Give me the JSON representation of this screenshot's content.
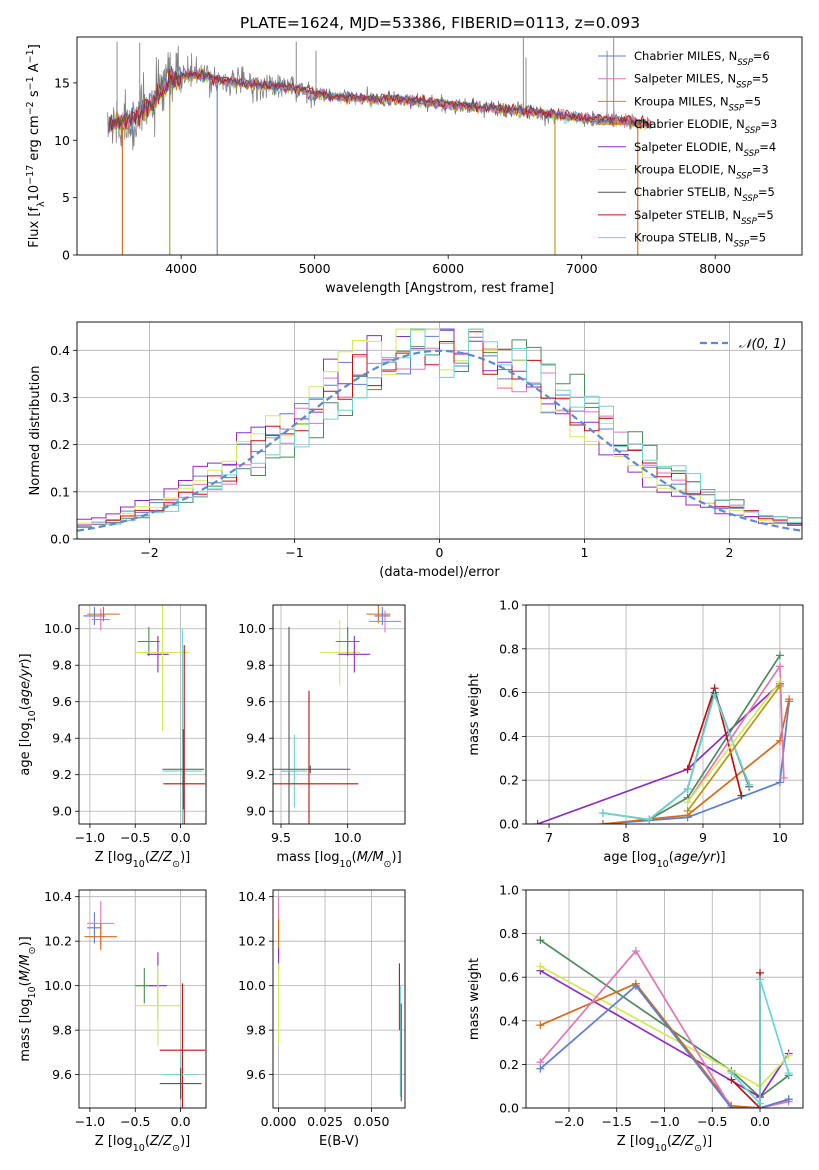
{
  "colors": {
    "Chabrier MILES": "#5b7fd4",
    "Salpeter MILES": "#e075b8",
    "Kroupa MILES": "#b8960e",
    "Chabrier ELODIE": "#d46a1a",
    "Salpeter ELODIE": "#8d2cc2",
    "Kroupa ELODIE": "#d5e85a",
    "Chabrier STELIB": "#555555",
    "Salpeter STELIB": "#c01010",
    "Kroupa STELIB": "#6cd4d4",
    "spectrum": "#808080",
    "normal": "#5b8bd4",
    "greenish": "#4e8a5a"
  },
  "chart_data": [
    {
      "id": "spectrum",
      "type": "line",
      "title": "PLATE=1624, MJD=53386, FIBERID=0113, z=0.093",
      "xlabel": "wavelength [Angstrom, rest frame]",
      "ylabel": "Flux [fλ10⁻¹⁷ erg cm⁻² s⁻¹ A⁻¹]",
      "xlim": [
        3220,
        8650
      ],
      "ylim": [
        0,
        19
      ],
      "xticks": [
        4000,
        5000,
        6000,
        7000,
        8000
      ],
      "yticks": [
        0,
        5,
        10,
        15
      ],
      "grid": false,
      "legend_position": "top-right",
      "legend": [
        {
          "name": "Chabrier MILES, N",
          "sub": "SSP",
          "tail": "=6"
        },
        {
          "name": "Salpeter MILES, N",
          "sub": "SSP",
          "tail": "=5"
        },
        {
          "name": "Kroupa MILES, N",
          "sub": "SSP",
          "tail": "=5"
        },
        {
          "name": "Chabrier ELODIE, N",
          "sub": "SSP",
          "tail": "=3"
        },
        {
          "name": "Salpeter ELODIE, N",
          "sub": "SSP",
          "tail": "=4"
        },
        {
          "name": "Kroupa ELODIE, N",
          "sub": "SSP",
          "tail": "=3"
        },
        {
          "name": "Chabrier STELIB, N",
          "sub": "SSP",
          "tail": "=5"
        },
        {
          "name": "Salpeter STELIB, N",
          "sub": "SSP",
          "tail": "=5"
        },
        {
          "name": "Kroupa STELIB, N",
          "sub": "SSP",
          "tail": "=5"
        }
      ],
      "continuum": [
        [
          3450,
          11.2
        ],
        [
          3560,
          11.6
        ],
        [
          3700,
          12.2
        ],
        [
          3850,
          14.2
        ],
        [
          3950,
          15.4
        ],
        [
          4100,
          15.8
        ],
        [
          4300,
          15.2
        ],
        [
          4500,
          14.9
        ],
        [
          4700,
          14.7
        ],
        [
          4900,
          14.4
        ],
        [
          5100,
          13.8
        ],
        [
          5400,
          13.6
        ],
        [
          5700,
          13.5
        ],
        [
          6000,
          13.1
        ],
        [
          6300,
          12.8
        ],
        [
          6600,
          12.5
        ],
        [
          6800,
          12.2
        ],
        [
          7000,
          11.9
        ],
        [
          7300,
          11.7
        ],
        [
          7500,
          11.4
        ]
      ],
      "spectrum_spikes": [
        [
          3520,
          18.6
        ],
        [
          3690,
          18.5
        ],
        [
          3970,
          17.6
        ],
        [
          4862,
          18.6
        ],
        [
          5010,
          17.8
        ],
        [
          6563,
          18.9
        ],
        [
          6583,
          17.2
        ],
        [
          7190,
          17.8
        ],
        [
          7240,
          18.9
        ]
      ],
      "model_dropouts": [
        {
          "series": "Chabrier ELODIE",
          "x": 3560,
          "to": 0
        },
        {
          "series": "Kroupa MILES",
          "x": 3915,
          "to": 0
        },
        {
          "series": "Chabrier MILES",
          "x": 4270,
          "to": 0
        },
        {
          "series": "Kroupa MILES",
          "x": 6800,
          "to": 0
        },
        {
          "series": "Chabrier ELODIE",
          "x": 7420,
          "to": 0
        }
      ]
    },
    {
      "id": "residuals",
      "type": "line",
      "xlabel": "(data-model)/error",
      "ylabel": "Normed distribution",
      "xlim": [
        -2.5,
        2.5
      ],
      "ylim": [
        0,
        0.46
      ],
      "xticks": [
        -2,
        -1,
        0,
        1,
        2
      ],
      "yticks": [
        0.0,
        0.1,
        0.2,
        0.3,
        0.4
      ],
      "grid": true,
      "bins": 50,
      "legend": {
        "label": "𝒩(0, 1)",
        "position": "top-right"
      },
      "series": [
        {
          "name": "Chabrier MILES",
          "key": "Chabrier MILES"
        },
        {
          "name": "Salpeter MILES",
          "key": "Salpeter MILES"
        },
        {
          "name": "Chabrier ELODIE",
          "key": "greenish"
        },
        {
          "name": "Salpeter ELODIE",
          "key": "Salpeter ELODIE"
        },
        {
          "name": "Kroupa ELODIE",
          "key": "Kroupa ELODIE"
        },
        {
          "name": "Salpeter STELIB",
          "key": "Salpeter STELIB"
        },
        {
          "name": "Kroupa STELIB",
          "key": "Kroupa STELIB"
        }
      ]
    },
    {
      "id": "age-vs-Z",
      "type": "scatter",
      "xlabel": "Z [log₁₀(Z/Z⊙)]",
      "ylabel": "age  [log₁₀(age/yr)]",
      "xlim": [
        -1.12,
        0.28
      ],
      "ylim": [
        8.93,
        10.13
      ],
      "xticks": [
        -1.0,
        -0.5,
        0.0
      ],
      "yticks": [
        9.0,
        9.2,
        9.4,
        9.6,
        9.8,
        10.0
      ],
      "grid": true,
      "points": [
        {
          "key": "Chabrier MILES",
          "x": -0.95,
          "y": 10.07,
          "xerr": 0.12,
          "yerr": 0.05
        },
        {
          "key": "Salpeter MILES",
          "x": -0.88,
          "y": 10.05,
          "xerr": 0.1,
          "yerr": 0.06
        },
        {
          "key": "Chabrier ELODIE",
          "x": -0.85,
          "y": 10.08,
          "xerr": 0.18,
          "yerr": 0.04
        },
        {
          "key": "greenish",
          "x": -0.35,
          "y": 9.93,
          "xerr": 0.12,
          "yerr": 0.08
        },
        {
          "key": "Salpeter ELODIE",
          "x": -0.25,
          "y": 9.86,
          "xerr": 0.12,
          "yerr": 0.1
        },
        {
          "key": "Kroupa ELODIE",
          "x": -0.2,
          "y": 9.87,
          "xerr": 0.3,
          "yerr": 0.43
        },
        {
          "key": "Kroupa STELIB",
          "x": 0.02,
          "y": 9.22,
          "xerr": 0.22,
          "yerr": 0.78
        },
        {
          "key": "Chabrier STELIB",
          "x": 0.03,
          "y": 9.23,
          "xerr": 0.23,
          "yerr": 0.22
        },
        {
          "key": "Salpeter STELIB",
          "x": 0.04,
          "y": 9.15,
          "xerr": 0.23,
          "yerr": 0.76
        }
      ]
    },
    {
      "id": "age-vs-mass",
      "type": "scatter",
      "xlabel": "mass [log₁₀(M/M⊙)]",
      "ylabel": "",
      "xlim": [
        9.44,
        10.43
      ],
      "ylim": [
        8.93,
        10.13
      ],
      "xticks": [
        9.5,
        10.0
      ],
      "yticks": [
        9.0,
        9.2,
        9.4,
        9.6,
        9.8,
        10.0
      ],
      "grid": true,
      "points": [
        {
          "key": "Chabrier STELIB",
          "x": 9.56,
          "y": 9.22,
          "xerr": 0.05,
          "yerr": 0.79
        },
        {
          "key": "Kroupa STELIB",
          "x": 9.6,
          "y": 9.22,
          "xerr": 0.1,
          "yerr": 0.2
        },
        {
          "key": "Chabrier STELIB",
          "x": 9.72,
          "y": 9.23,
          "xerr": 0.3,
          "yerr": 0.02
        },
        {
          "key": "Salpeter STELIB",
          "x": 9.71,
          "y": 9.15,
          "xerr": 0.37,
          "yerr": 0.51
        },
        {
          "key": "Kroupa ELODIE",
          "x": 9.94,
          "y": 9.87,
          "xerr": 0.15,
          "yerr": 0.18
        },
        {
          "key": "greenish",
          "x": 10.0,
          "y": 9.93,
          "xerr": 0.09,
          "yerr": 0.08
        },
        {
          "key": "Salpeter ELODIE",
          "x": 10.05,
          "y": 9.86,
          "xerr": 0.12,
          "yerr": 0.1
        },
        {
          "key": "Chabrier ELODIE",
          "x": 10.23,
          "y": 10.08,
          "xerr": 0.09,
          "yerr": 0.05
        },
        {
          "key": "Salpeter MILES",
          "x": 10.28,
          "y": 10.04,
          "xerr": 0.12,
          "yerr": 0.06
        },
        {
          "key": "Chabrier MILES",
          "x": 10.26,
          "y": 10.07,
          "xerr": 0.06,
          "yerr": 0.05
        }
      ]
    },
    {
      "id": "weight-vs-age",
      "type": "line",
      "xlabel": "age  [log₁₀(age/yr)]",
      "ylabel": "mass weight",
      "xlim": [
        6.7,
        10.3
      ],
      "ylim": [
        0,
        1.0
      ],
      "xticks": [
        7,
        8,
        9,
        10
      ],
      "yticks": [
        0.0,
        0.2,
        0.4,
        0.6,
        0.8,
        1.0
      ],
      "grid": true,
      "series": [
        {
          "name": "Salpeter ELODIE",
          "key": "Salpeter ELODIE",
          "x": [
            6.85,
            8.8,
            10.0
          ],
          "y": [
            0.0,
            0.25,
            0.64
          ]
        },
        {
          "name": "Chabrier MILES",
          "key": "Chabrier MILES",
          "x": [
            7.7,
            8.8,
            10.0,
            10.12
          ],
          "y": [
            0.0,
            0.03,
            0.19,
            0.56
          ]
        },
        {
          "name": "Chabrier ELODIE",
          "key": "Chabrier ELODIE",
          "x": [
            7.7,
            8.8,
            10.0,
            10.12
          ],
          "y": [
            0.0,
            0.04,
            0.38,
            0.57
          ]
        },
        {
          "name": "Chabrier ELODIE",
          "key": "greenish",
          "x": [
            7.7,
            8.3,
            8.8,
            10.0
          ],
          "y": [
            0.05,
            0.02,
            0.12,
            0.77
          ]
        },
        {
          "name": "Salpeter STELIB",
          "key": "Salpeter STELIB",
          "x": [
            8.8,
            9.15,
            9.5
          ],
          "y": [
            0.25,
            0.62,
            0.13
          ]
        },
        {
          "name": "Chabrier STELIB",
          "key": "Chabrier STELIB",
          "x": [
            8.3,
            8.8,
            9.15,
            9.6
          ],
          "y": [
            0.02,
            0.16,
            0.6,
            0.17
          ]
        },
        {
          "name": "Kroupa STELIB",
          "key": "Kroupa STELIB",
          "x": [
            7.7,
            8.3,
            8.8,
            9.15,
            9.6
          ],
          "y": [
            0.05,
            0.02,
            0.16,
            0.59,
            0.18
          ]
        },
        {
          "name": "Salpeter MILES",
          "key": "Salpeter MILES",
          "x": [
            8.8,
            10.0,
            10.05
          ],
          "y": [
            0.1,
            0.72,
            0.21
          ]
        },
        {
          "name": "Kroupa ELODIE",
          "key": "Kroupa ELODIE",
          "x": [
            8.8,
            10.0
          ],
          "y": [
            0.1,
            0.65
          ]
        },
        {
          "name": "Kroupa MILES",
          "key": "Kroupa MILES",
          "x": [
            8.8,
            10.0
          ],
          "y": [
            0.06,
            0.63
          ]
        }
      ]
    },
    {
      "id": "mass-vs-Z",
      "type": "scatter",
      "xlabel": "Z [log₁₀(Z/Z⊙)]",
      "ylabel": "mass [log₁₀(M/M⊙)]",
      "xlim": [
        -1.12,
        0.28
      ],
      "ylim": [
        9.45,
        10.43
      ],
      "xticks": [
        -1.0,
        -0.5,
        0.0
      ],
      "yticks": [
        9.6,
        9.8,
        10.0,
        10.2,
        10.4
      ],
      "grid": true,
      "points": [
        {
          "key": "Chabrier MILES",
          "x": -0.95,
          "y": 10.26,
          "xerr": 0.08,
          "yerr": 0.07
        },
        {
          "key": "Salpeter MILES",
          "x": -0.88,
          "y": 10.28,
          "xerr": 0.15,
          "yerr": 0.1
        },
        {
          "key": "Chabrier ELODIE",
          "x": -0.88,
          "y": 10.22,
          "xerr": 0.18,
          "yerr": 0.06
        },
        {
          "key": "greenish",
          "x": -0.4,
          "y": 10.0,
          "xerr": 0.1,
          "yerr": 0.08
        },
        {
          "key": "Salpeter ELODIE",
          "x": -0.25,
          "y": 10.0,
          "xerr": 0.1,
          "yerr": 0.15
        },
        {
          "key": "Kroupa ELODIE",
          "x": -0.25,
          "y": 9.91,
          "xerr": 0.25,
          "yerr": 0.18
        },
        {
          "key": "Salpeter STELIB",
          "x": 0.02,
          "y": 9.71,
          "xerr": 0.25,
          "yerr": 0.3
        },
        {
          "key": "Kroupa STELIB",
          "x": 0.0,
          "y": 9.6,
          "xerr": 0.2,
          "yerr": 0.1
        },
        {
          "key": "Chabrier STELIB",
          "x": 0.0,
          "y": 9.56,
          "xerr": 0.23,
          "yerr": 0.07
        }
      ]
    },
    {
      "id": "mass-vs-EBV",
      "type": "scatter",
      "xlabel": "E(B-V)",
      "ylabel": "",
      "xlim": [
        -0.003,
        0.068
      ],
      "ylim": [
        9.45,
        10.43
      ],
      "xticks": [
        0.0,
        0.025,
        0.05
      ],
      "yticks": [
        9.6,
        9.8,
        10.0,
        10.2,
        10.4
      ],
      "grid": true,
      "points": [
        {
          "key": "Salpeter MILES",
          "x": 0.0,
          "y": 10.3,
          "xerr": 0,
          "yerr": 0.1
        },
        {
          "key": "Chabrier ELODIE",
          "x": 0.0,
          "y": 10.22,
          "xerr": 0,
          "yerr": 0.08
        },
        {
          "key": "Salpeter ELODIE",
          "x": 0.0,
          "y": 10.12,
          "xerr": 0,
          "yerr": 0.05
        },
        {
          "key": "Kroupa ELODIE",
          "x": 0.0,
          "y": 9.92,
          "xerr": 0,
          "yerr": 0.18
        },
        {
          "key": "Salpeter STELIB",
          "x": 0.065,
          "y": 9.95,
          "xerr": 0,
          "yerr": 0.15
        },
        {
          "key": "Kroupa STELIB",
          "x": 0.0655,
          "y": 9.75,
          "xerr": 0,
          "yerr": 0.25
        },
        {
          "key": "Chabrier STELIB",
          "x": 0.066,
          "y": 9.7,
          "xerr": 0,
          "yerr": 0.22
        }
      ]
    },
    {
      "id": "weight-vs-Z",
      "type": "line",
      "xlabel": "Z [log₁₀(Z/Z⊙)]",
      "ylabel": "mass weight",
      "xlim": [
        -2.45,
        0.45
      ],
      "ylim": [
        0,
        1.0
      ],
      "xticks": [
        -2.0,
        -1.5,
        -1.0,
        -0.5,
        0.0
      ],
      "yticks": [
        0.0,
        0.2,
        0.4,
        0.6,
        0.8,
        1.0
      ],
      "grid": true,
      "series": [
        {
          "name": "Chabrier ELODIE",
          "key": "greenish",
          "x": [
            -2.3,
            -0.3,
            0.0,
            0.3
          ],
          "y": [
            0.77,
            0.17,
            0.05,
            0.15
          ]
        },
        {
          "name": "Salpeter ELODIE",
          "key": "Salpeter ELODIE",
          "x": [
            -2.3,
            0.0,
            0.3
          ],
          "y": [
            0.63,
            0.05,
            0.25
          ]
        },
        {
          "name": "Kroupa ELODIE",
          "key": "Kroupa ELODIE",
          "x": [
            -2.3,
            0.0,
            0.3
          ],
          "y": [
            0.65,
            0.1,
            0.24
          ]
        },
        {
          "name": "Chabrier ELODIE",
          "key": "Chabrier ELODIE",
          "x": [
            -2.3,
            -1.3,
            -0.3,
            0.0,
            0.3
          ],
          "y": [
            0.38,
            0.57,
            0.01,
            0.0,
            0.04
          ]
        },
        {
          "name": "Salpeter MILES",
          "key": "Salpeter MILES",
          "x": [
            -2.3,
            -1.3,
            -0.3,
            0.0,
            0.3
          ],
          "y": [
            0.21,
            0.72,
            0.0,
            0.0,
            0.03
          ]
        },
        {
          "name": "Chabrier MILES",
          "key": "Chabrier MILES",
          "x": [
            -2.3,
            -1.3,
            -0.3,
            0.0,
            0.3
          ],
          "y": [
            0.18,
            0.56,
            0.0,
            0.0,
            0.04
          ]
        },
        {
          "name": "Salpeter STELIB",
          "key": "Salpeter STELIB",
          "x": [
            -0.3,
            0.0,
            0.0
          ],
          "y": [
            0.13,
            0.0,
            0.62
          ]
        },
        {
          "name": "Kroupa STELIB",
          "key": "Kroupa STELIB",
          "x": [
            -0.3,
            0.0,
            0.0,
            0.3
          ],
          "y": [
            0.16,
            0.02,
            0.59,
            0.16
          ]
        }
      ]
    }
  ]
}
